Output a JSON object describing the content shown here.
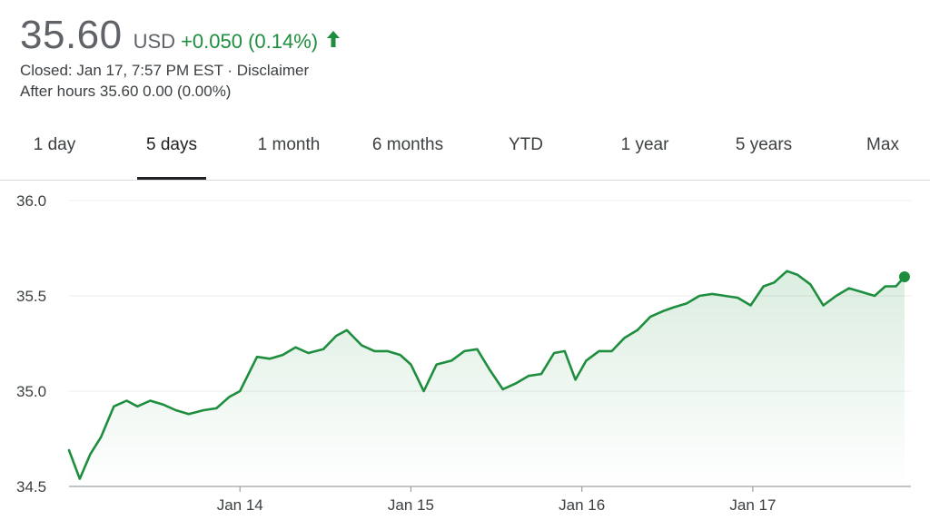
{
  "header": {
    "price": "35.60",
    "currency": "USD",
    "change": "+0.050 (0.14%)",
    "arrow_icon": "arrow-up-icon",
    "closed": "Closed: Jan 17, 7:57 PM EST",
    "separator": "·",
    "disclaimer": "Disclaimer",
    "after_hours": "After hours 35.60 0.00 (0.00%)",
    "up_color": "#1e8e3e"
  },
  "tabs": [
    {
      "label": "1 day",
      "active": false
    },
    {
      "label": "5 days",
      "active": true
    },
    {
      "label": "1 month",
      "active": false
    },
    {
      "label": "6 months",
      "active": false
    },
    {
      "label": "YTD",
      "active": false
    },
    {
      "label": "1 year",
      "active": false
    },
    {
      "label": "5 years",
      "active": false
    },
    {
      "label": "Max",
      "active": false
    }
  ],
  "chart_data": {
    "type": "area",
    "title": "",
    "xlabel": "",
    "ylabel": "",
    "line_color": "#1e8e3e",
    "grid": true,
    "ylim": [
      34.5,
      36.0
    ],
    "y_ticks": [
      34.5,
      35.0,
      35.5,
      36.0
    ],
    "y_tick_labels": [
      "34.5",
      "35.0",
      "35.5",
      "36.0"
    ],
    "x_ticks": [
      4.0,
      8.0,
      12.0,
      16.0
    ],
    "x_tick_labels": [
      "Jan 14",
      "Jan 15",
      "Jan 16",
      "Jan 17"
    ],
    "xlim": [
      0.0,
      19.7
    ],
    "x": [
      0.0,
      0.25,
      0.5,
      0.75,
      1.05,
      1.35,
      1.6,
      1.9,
      2.2,
      2.5,
      2.8,
      3.15,
      3.45,
      3.75,
      4.0,
      4.4,
      4.7,
      5.0,
      5.3,
      5.6,
      5.95,
      6.25,
      6.5,
      6.85,
      7.15,
      7.45,
      7.75,
      8.0,
      8.3,
      8.6,
      8.95,
      9.25,
      9.55,
      9.85,
      10.15,
      10.45,
      10.75,
      11.05,
      11.35,
      11.6,
      11.85,
      12.1,
      12.4,
      12.7,
      13.0,
      13.3,
      13.6,
      13.9,
      14.15,
      14.45,
      14.75,
      15.05,
      15.35,
      15.65,
      15.95,
      16.25,
      16.5,
      16.8,
      17.05,
      17.35,
      17.65,
      17.95,
      18.25,
      18.55,
      18.85,
      19.1,
      19.35,
      19.55
    ],
    "values": [
      34.69,
      34.54,
      34.67,
      34.76,
      34.92,
      34.95,
      34.92,
      34.95,
      34.93,
      34.9,
      34.88,
      34.9,
      34.91,
      34.97,
      35.0,
      35.18,
      35.17,
      35.19,
      35.23,
      35.2,
      35.22,
      35.29,
      35.32,
      35.24,
      35.21,
      35.21,
      35.19,
      35.14,
      35.0,
      35.14,
      35.16,
      35.21,
      35.22,
      35.11,
      35.01,
      35.04,
      35.08,
      35.09,
      35.2,
      35.21,
      35.06,
      35.16,
      35.21,
      35.21,
      35.28,
      35.32,
      35.39,
      35.42,
      35.44,
      35.46,
      35.5,
      35.51,
      35.5,
      35.49,
      35.45,
      35.55,
      35.57,
      35.63,
      35.61,
      35.56,
      35.45,
      35.5,
      35.54,
      35.52,
      35.5,
      35.55,
      35.55,
      35.6
    ]
  }
}
